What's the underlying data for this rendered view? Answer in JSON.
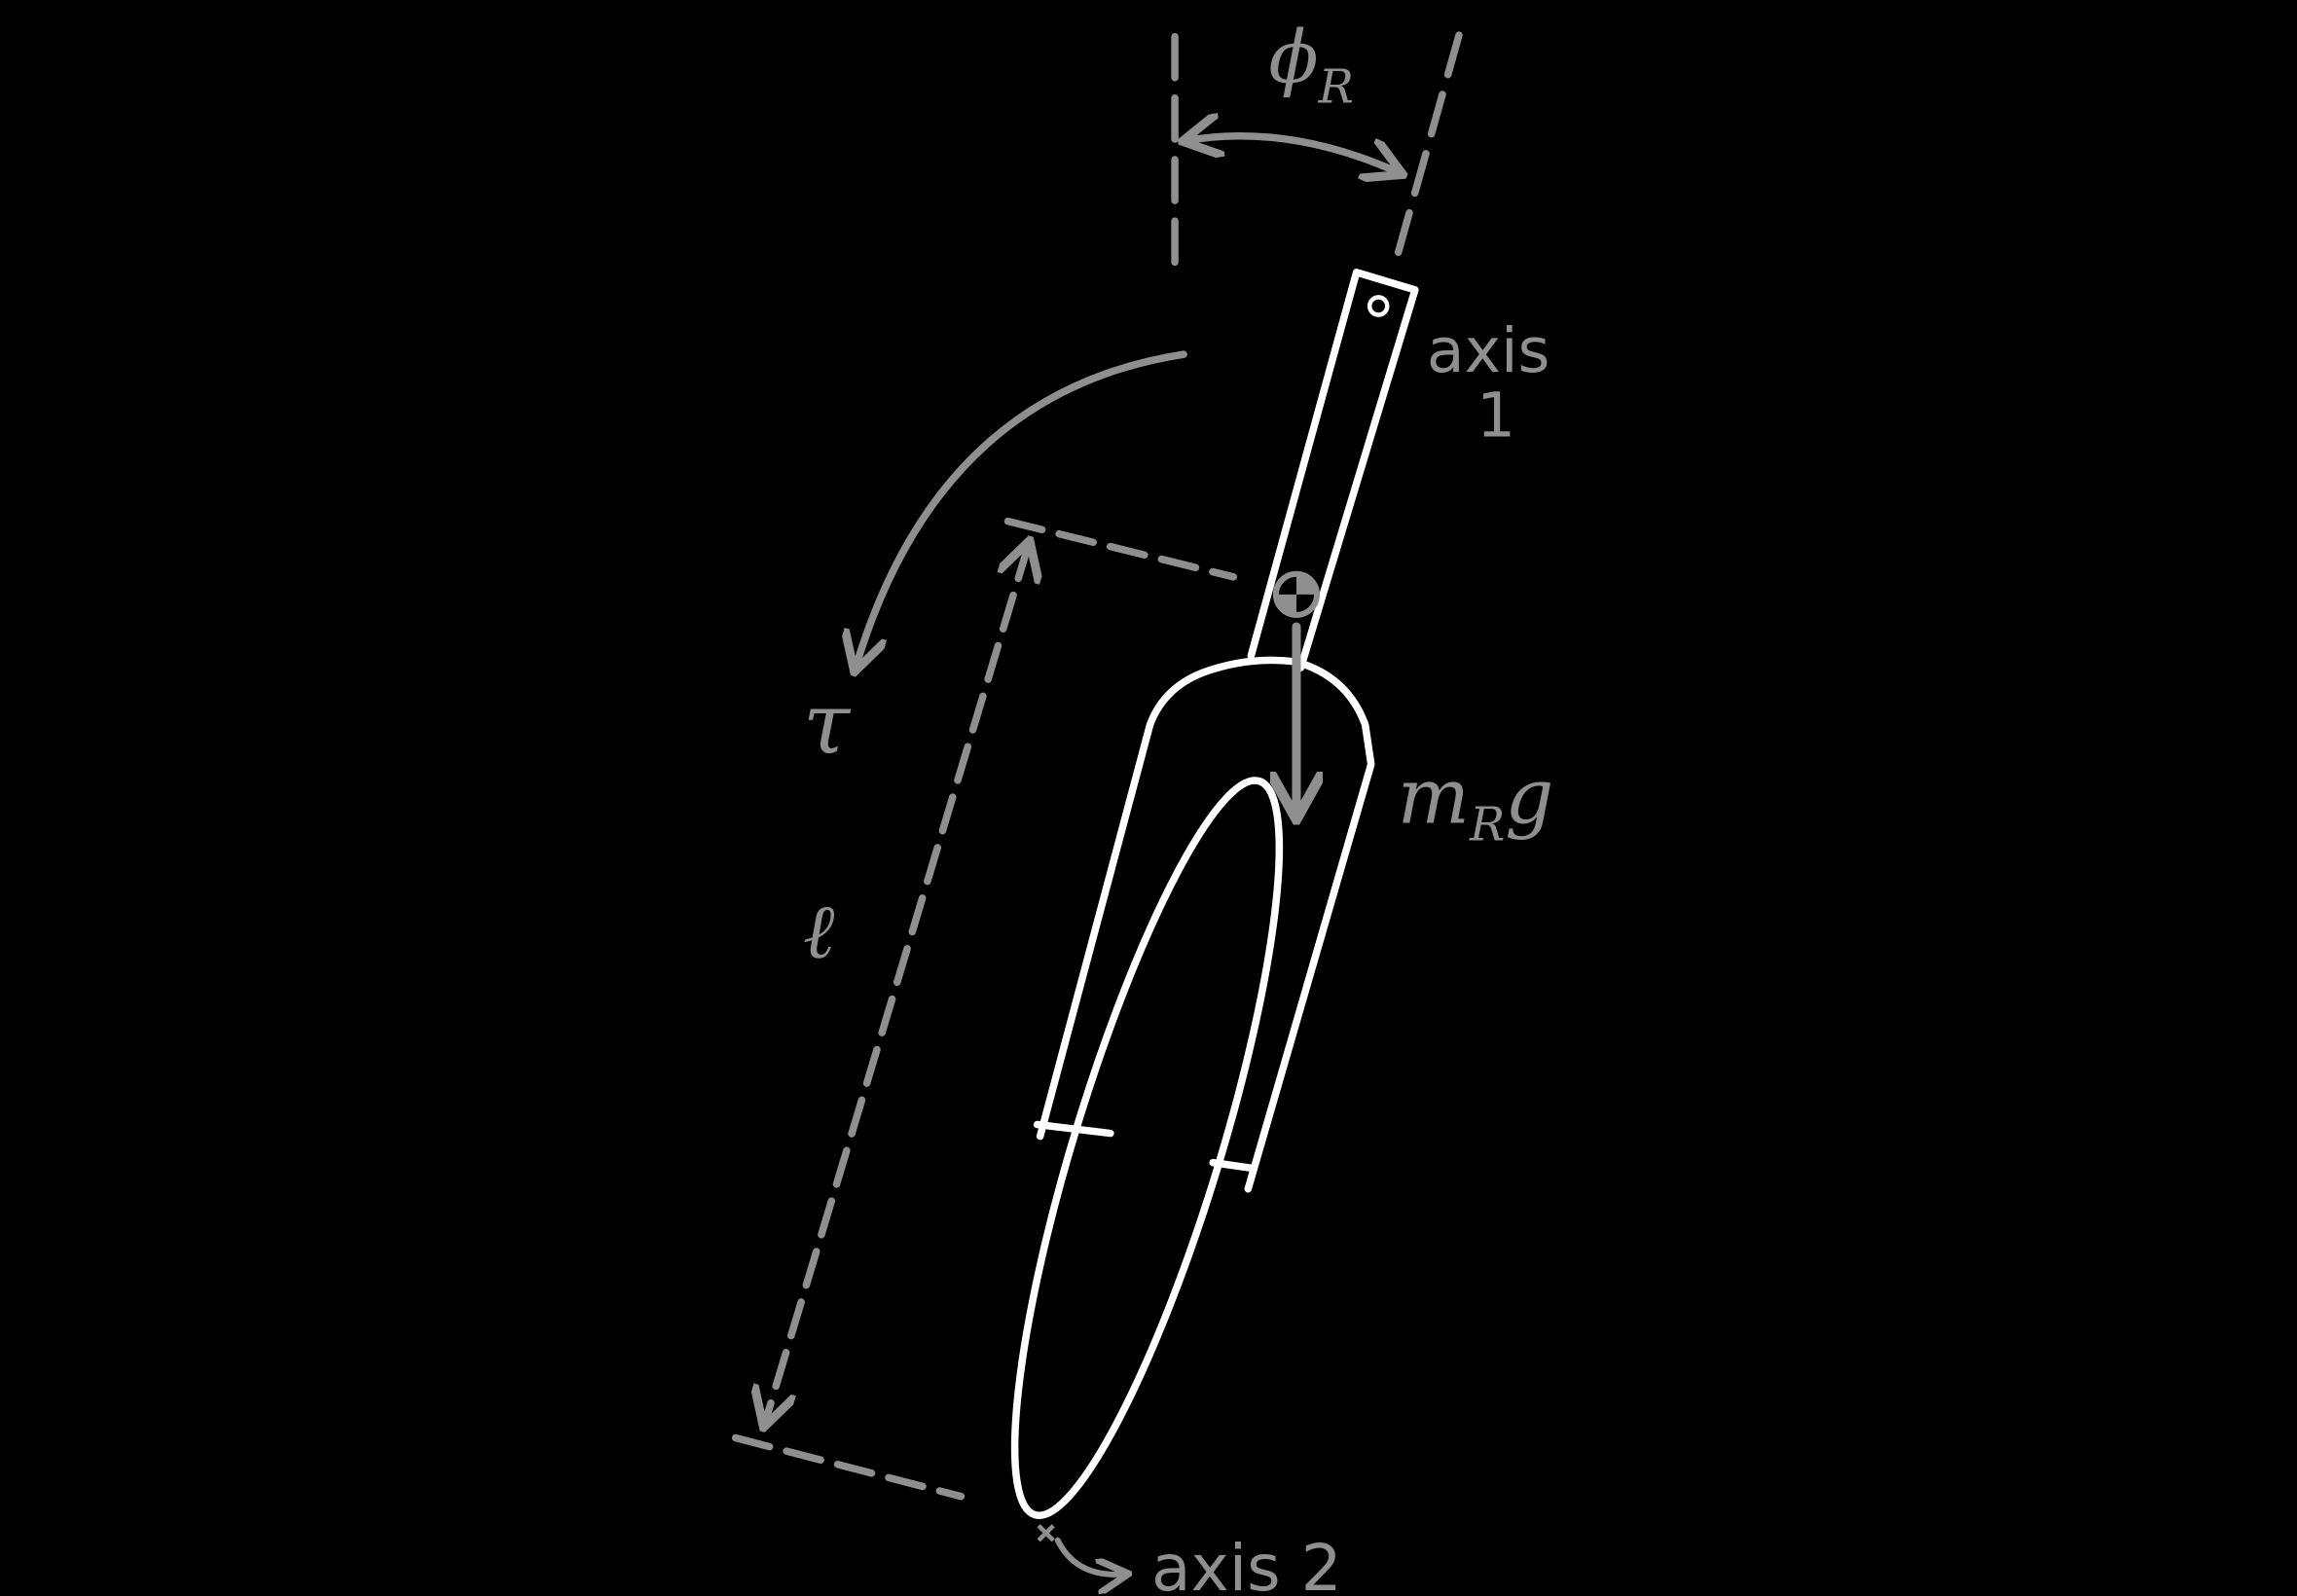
{
  "labels": {
    "phi": "ϕ",
    "phi_sub": "R",
    "axis1_line1": "axis",
    "axis1_line2": "1",
    "tau": "τ",
    "ell": "ℓ",
    "mass": "m",
    "mass_sub": "R",
    "mass_g": "g",
    "axis2": "axis 2"
  },
  "colors": {
    "background": "#000000",
    "outline": "#ffffff",
    "annotation": "#8f8f8f"
  }
}
